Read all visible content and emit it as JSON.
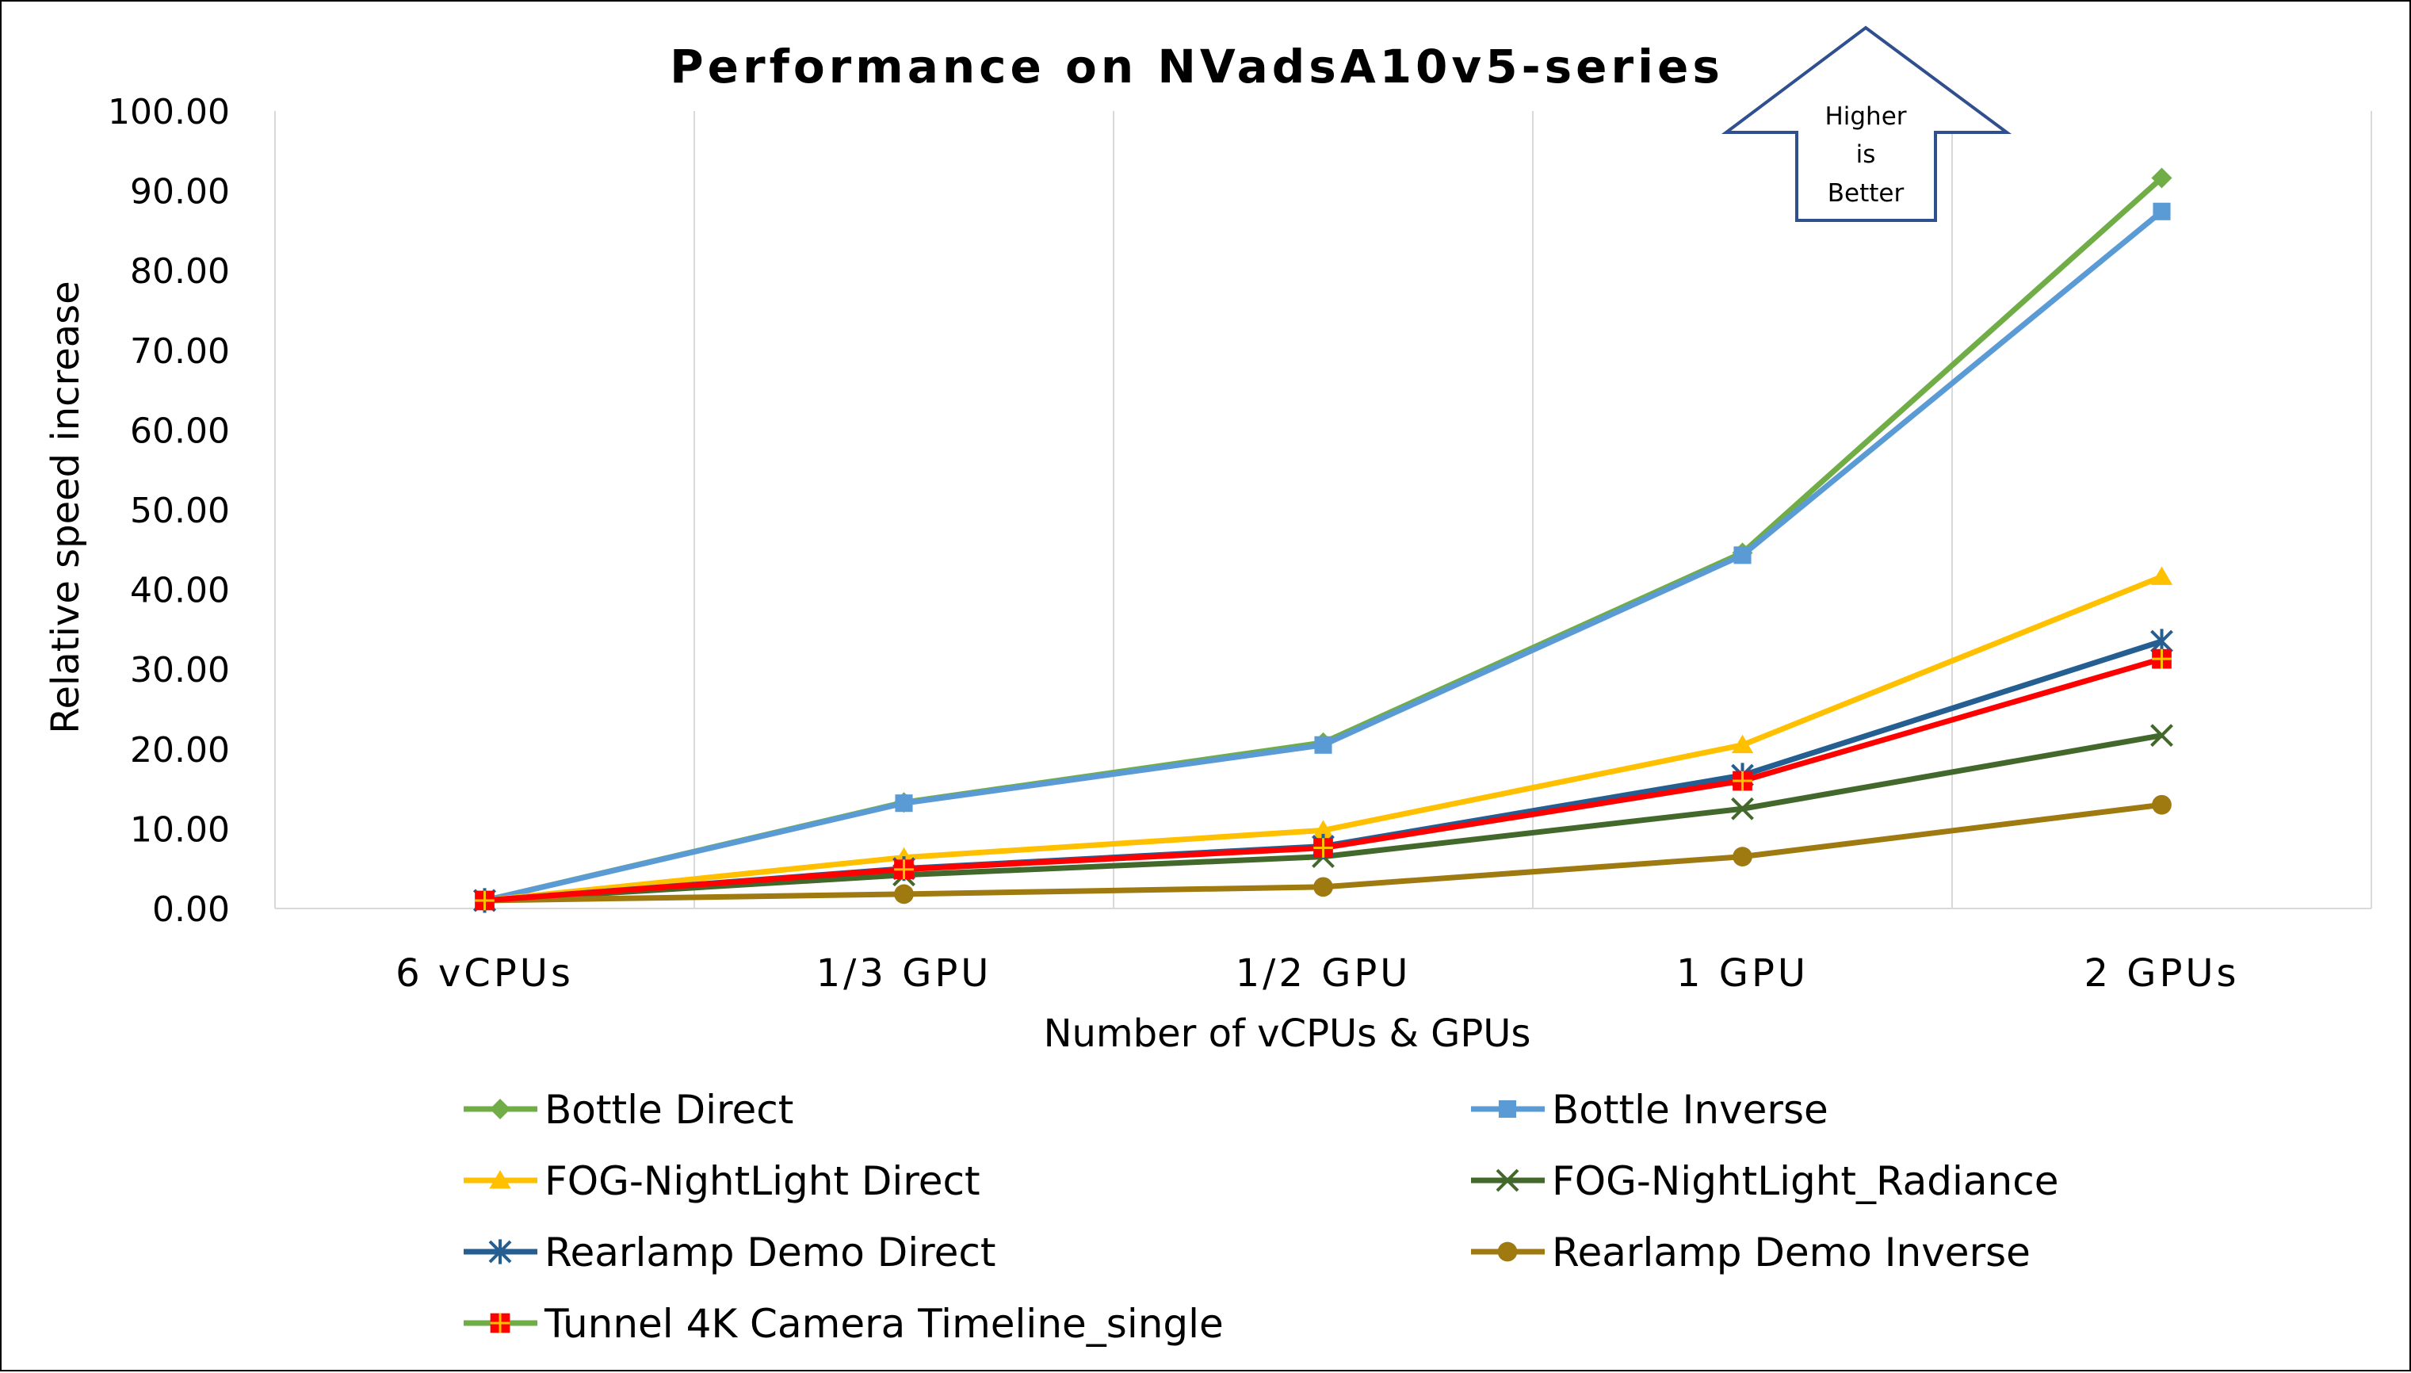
{
  "chart_data": {
    "type": "line",
    "title": "Performance on NVadsA10v5-series",
    "xlabel": "Number of vCPUs & GPUs",
    "ylabel": "Relative speed increase",
    "categories": [
      "6 vCPUs",
      "1/3 GPU",
      "1/2 GPU",
      "1 GPU",
      "2 GPUs"
    ],
    "ylim": [
      0,
      100
    ],
    "yticks": [
      "0.00",
      "10.00",
      "20.00",
      "30.00",
      "40.00",
      "50.00",
      "60.00",
      "70.00",
      "80.00",
      "90.00",
      "100.00"
    ],
    "grid": "vertical",
    "legend_position": "bottom",
    "annotation": [
      "Higher",
      "is",
      "Better"
    ],
    "series": [
      {
        "name": "Bottle Direct",
        "color": "#70AD47",
        "marker": "diamond",
        "values": [
          1.0,
          13.3,
          20.8,
          44.6,
          91.6
        ]
      },
      {
        "name": "Bottle Inverse",
        "color": "#5B9BD5",
        "marker": "square",
        "values": [
          1.0,
          13.2,
          20.5,
          44.3,
          87.4
        ]
      },
      {
        "name": "FOG-NightLight Direct",
        "color": "#FFC000",
        "marker": "triangle",
        "values": [
          1.0,
          6.4,
          9.8,
          20.5,
          41.6
        ]
      },
      {
        "name": "FOG-NightLight_Radiance",
        "color": "#43682B",
        "marker": "x",
        "values": [
          1.0,
          4.2,
          6.5,
          12.5,
          21.7
        ]
      },
      {
        "name": "Rearlamp Demo Direct",
        "color": "#255E91",
        "marker": "star",
        "values": [
          1.0,
          5.0,
          7.8,
          16.7,
          33.5
        ]
      },
      {
        "name": "Rearlamp Demo Inverse",
        "color": "#9E7A11",
        "marker": "circle",
        "values": [
          1.0,
          1.8,
          2.7,
          6.5,
          13.0
        ]
      },
      {
        "name": "Tunnel 4K Camera Timeline_single",
        "color": "#FF0000",
        "legend_line_color": "#70AD47",
        "marker": "redcross",
        "values": [
          1.0,
          4.9,
          7.6,
          16.0,
          31.3
        ]
      }
    ]
  }
}
